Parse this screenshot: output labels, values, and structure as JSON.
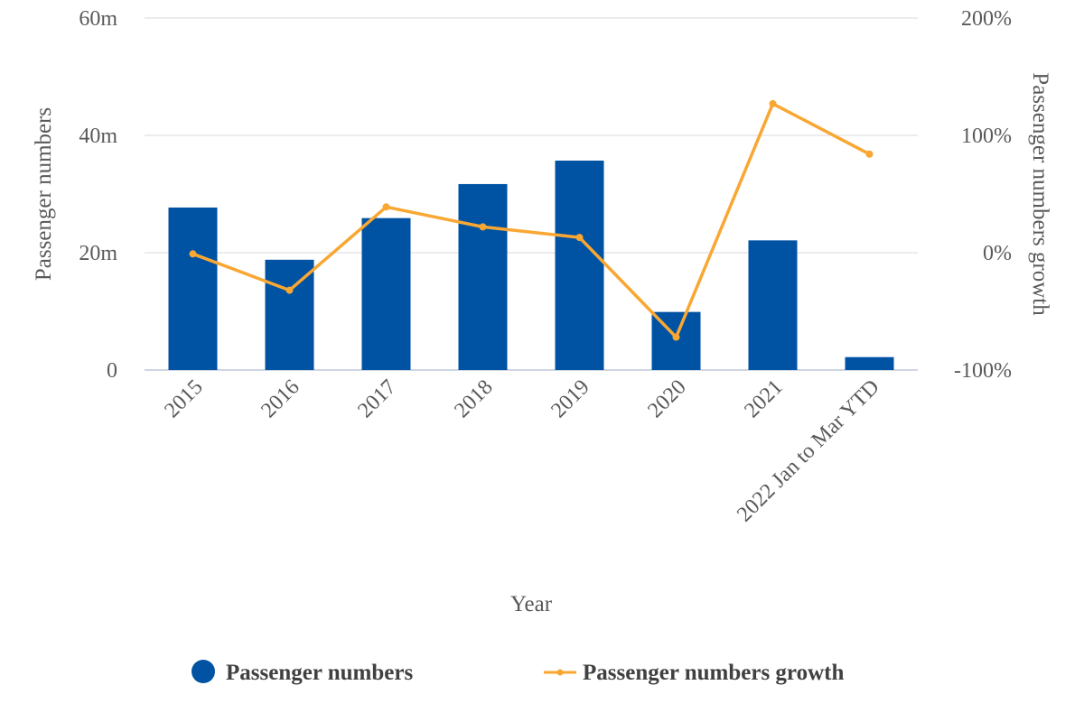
{
  "chart_data": {
    "type": "bar",
    "categories": [
      "2015",
      "2016",
      "2017",
      "2018",
      "2019",
      "2020",
      "2021",
      "2022 Jan to Mar YTD"
    ],
    "xlabel": "Year",
    "ylabel": "Passenger numbers",
    "y2label": "Passenger numbers growth",
    "ylim": [
      0,
      60
    ],
    "y2lim": [
      -100,
      200
    ],
    "y_ticks": [
      "0",
      "20m",
      "40m",
      "60m"
    ],
    "y2_ticks": [
      "-100%",
      "0%",
      "100%",
      "200%"
    ],
    "grid": true,
    "legend_position": "bottom",
    "series": [
      {
        "name": "Passenger numbers",
        "type": "bar",
        "axis": "left",
        "unit": "m",
        "color": "#0052A3",
        "values": [
          27.7,
          18.8,
          25.9,
          31.7,
          35.7,
          9.9,
          22.1,
          2.2
        ]
      },
      {
        "name": "Passenger numbers growth",
        "type": "line",
        "axis": "right",
        "unit": "%",
        "color": "#F9A732",
        "values": [
          -1,
          -32,
          39,
          22,
          13,
          -72,
          127,
          84
        ]
      }
    ]
  }
}
